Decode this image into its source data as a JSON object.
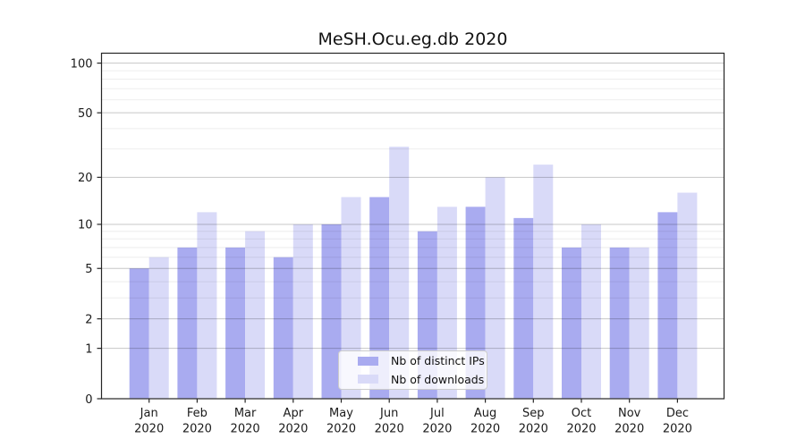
{
  "chart_data": {
    "type": "bar",
    "title": "MeSH.Ocu.eg.db 2020",
    "categories": [
      "Jan",
      "Feb",
      "Mar",
      "Apr",
      "May",
      "Jun",
      "Jul",
      "Aug",
      "Sep",
      "Oct",
      "Nov",
      "Dec"
    ],
    "category_year": "2020",
    "series": [
      {
        "name": "Nb of distinct IPs",
        "color": "#a9abf0",
        "values": [
          5,
          7,
          7,
          6,
          10,
          15,
          9,
          13,
          11,
          7,
          7,
          12
        ]
      },
      {
        "name": "Nb of downloads",
        "color": "#d9daf8",
        "values": [
          6,
          12,
          9,
          10,
          15,
          31,
          13,
          20,
          24,
          10,
          7,
          16
        ]
      }
    ],
    "yscale": "log1p",
    "ylim": [
      0,
      100
    ],
    "yticks": [
      0,
      1,
      2,
      5,
      10,
      20,
      50,
      100
    ],
    "minor_gridlines": [
      3,
      4,
      6,
      7,
      8,
      9,
      30,
      40,
      60,
      70,
      80,
      90
    ],
    "grid": true,
    "legend_position": "inside-bottom-center",
    "colors": {
      "frame": "#262626",
      "tick_text": "#1a1a1a",
      "grid_major": "rgba(0,0,0,0.22)",
      "grid_minor": "rgba(0,0,0,0.07)",
      "background": "#ffffff"
    }
  }
}
